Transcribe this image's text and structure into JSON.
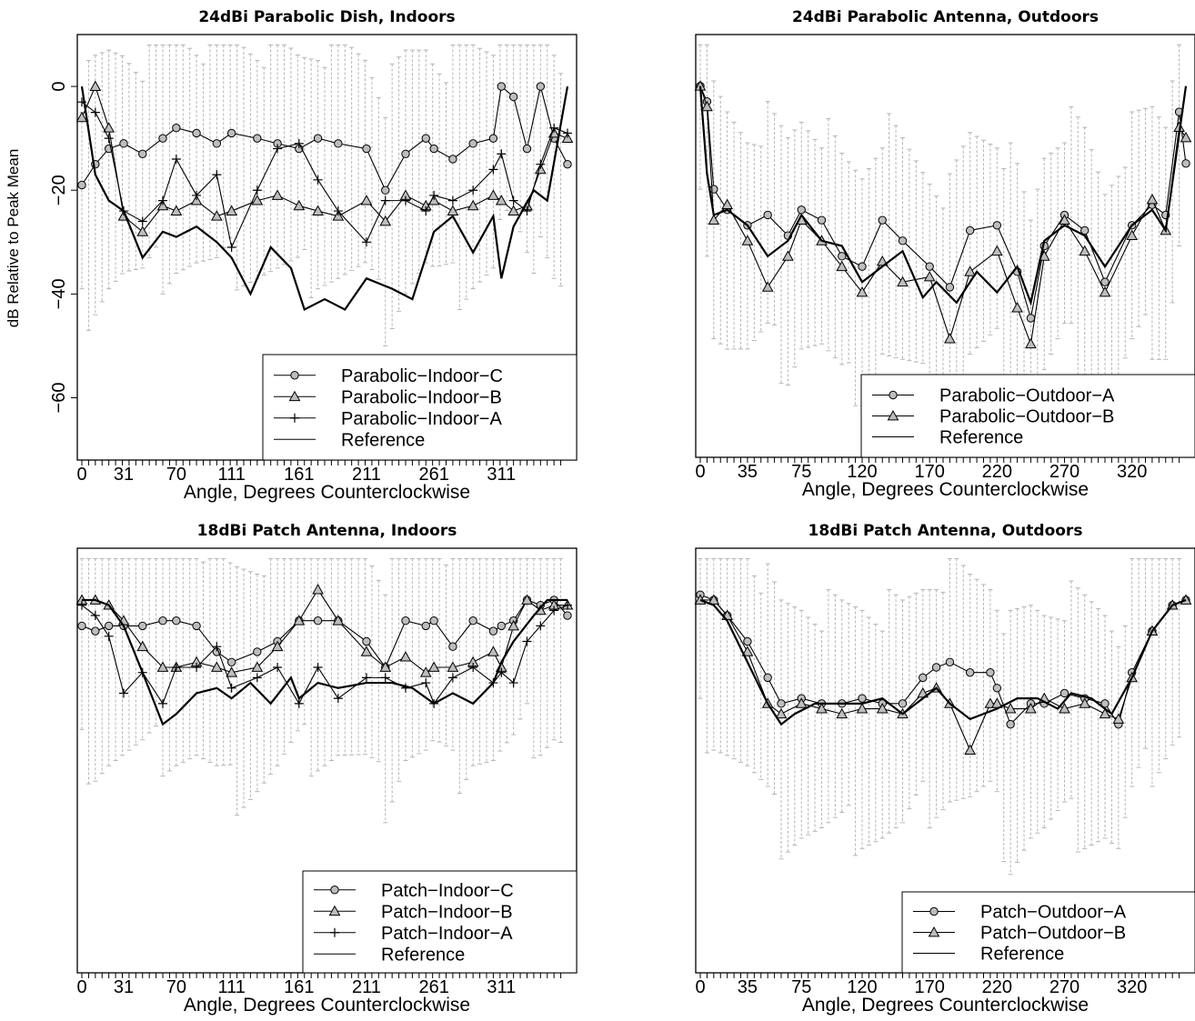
{
  "chart_data": [
    {
      "type": "line",
      "title": "24dBi Parabolic Dish, Indoors",
      "xlabel": "Angle, Degrees Counterclockwise",
      "ylabel": "dB Relative to Peak Mean",
      "xlim": [
        0,
        360
      ],
      "ylim": [
        -72,
        10
      ],
      "xticks": [
        0,
        31,
        70,
        111,
        161,
        211,
        261,
        311
      ],
      "yticks": [
        0,
        -20,
        -40,
        -60
      ],
      "legend_position": "bottom-right",
      "series": [
        {
          "name": "Parabolic−Indoor−C",
          "marker": "circle",
          "x": [
            0,
            10,
            20,
            31,
            45,
            60,
            70,
            85,
            100,
            111,
            130,
            145,
            161,
            175,
            190,
            211,
            225,
            240,
            255,
            261,
            275,
            290,
            305,
            311,
            320,
            330,
            340,
            350,
            360
          ],
          "y": [
            -19,
            -15,
            -12,
            -11,
            -13,
            -10,
            -8,
            -9,
            -11,
            -9,
            -10,
            -11,
            -12,
            -10,
            -11,
            -12,
            -20,
            -13,
            -10,
            -12,
            -14,
            -11,
            -10,
            0,
            -2,
            -12,
            0,
            -10,
            -15
          ]
        },
        {
          "name": "Parabolic−Indoor−B",
          "marker": "triangle",
          "x": [
            0,
            10,
            20,
            31,
            45,
            60,
            70,
            85,
            100,
            111,
            130,
            145,
            161,
            175,
            190,
            211,
            225,
            240,
            255,
            261,
            275,
            290,
            305,
            311,
            320,
            330,
            340,
            350,
            360
          ],
          "y": [
            -6,
            0,
            -8,
            -25,
            -28,
            -23,
            -24,
            -22,
            -25,
            -24,
            -22,
            -21,
            -23,
            -24,
            -25,
            -22,
            -26,
            -21,
            -23,
            -22,
            -24,
            -23,
            -21,
            -22,
            -24,
            -23,
            -16,
            -9,
            -10
          ]
        },
        {
          "name": "Parabolic−Indoor−A",
          "marker": "plus",
          "x": [
            0,
            10,
            20,
            31,
            45,
            60,
            70,
            85,
            100,
            111,
            130,
            145,
            161,
            175,
            190,
            211,
            225,
            240,
            255,
            261,
            275,
            290,
            305,
            311,
            320,
            330,
            340,
            350,
            360
          ],
          "y": [
            -3,
            -5,
            -10,
            -24,
            -26,
            -22,
            -14,
            -21,
            -17,
            -31,
            -20,
            -12,
            -11,
            -18,
            -24,
            -30,
            -22,
            -22,
            -24,
            -21,
            -22,
            -20,
            -16,
            -13,
            -22,
            -24,
            -15,
            -8,
            -9
          ]
        },
        {
          "name": "Reference",
          "marker": "none",
          "x": [
            0,
            10,
            20,
            31,
            45,
            60,
            70,
            85,
            100,
            111,
            125,
            140,
            155,
            165,
            180,
            195,
            211,
            230,
            245,
            261,
            275,
            290,
            305,
            311,
            320,
            335,
            345,
            360
          ],
          "y": [
            0,
            -17,
            -22,
            -24,
            -33,
            -28,
            -29,
            -27,
            -30,
            -33,
            -40,
            -31,
            -35,
            -43,
            -41,
            -43,
            -37,
            -39,
            -41,
            -28,
            -25,
            -32,
            -25,
            -37,
            -27,
            -20,
            -22,
            0
          ]
        }
      ]
    },
    {
      "type": "line",
      "title": "24dBi Parabolic Antenna, Outdoors",
      "xlabel": "Angle, Degrees Counterclockwise",
      "ylabel": "",
      "xlim": [
        0,
        360
      ],
      "ylim": [
        -72,
        10
      ],
      "xticks": [
        0,
        35,
        75,
        120,
        170,
        220,
        270,
        320
      ],
      "yticks": [],
      "legend_position": "bottom-right",
      "series": [
        {
          "name": "Parabolic−Outdoor−A",
          "marker": "circle",
          "x": [
            0,
            5,
            10,
            20,
            35,
            50,
            65,
            75,
            90,
            105,
            120,
            135,
            150,
            170,
            185,
            200,
            220,
            235,
            245,
            255,
            270,
            285,
            300,
            320,
            335,
            345,
            355,
            360
          ],
          "y": [
            0,
            -3,
            -20,
            -24,
            -27,
            -25,
            -29,
            -24,
            -26,
            -33,
            -35,
            -26,
            -30,
            -35,
            -39,
            -28,
            -27,
            -36,
            -45,
            -31,
            -25,
            -28,
            -38,
            -27,
            -23,
            -25,
            -5,
            -15
          ]
        },
        {
          "name": "Parabolic−Outdoor−B",
          "marker": "triangle",
          "x": [
            0,
            5,
            10,
            20,
            35,
            50,
            65,
            75,
            90,
            105,
            120,
            135,
            150,
            170,
            185,
            200,
            220,
            235,
            245,
            255,
            270,
            285,
            300,
            320,
            335,
            345,
            355,
            360
          ],
          "y": [
            0,
            -4,
            -26,
            -23,
            -30,
            -39,
            -33,
            -26,
            -30,
            -35,
            -40,
            -34,
            -38,
            -37,
            -49,
            -36,
            -32,
            -43,
            -50,
            -33,
            -26,
            -32,
            -40,
            -29,
            -22,
            -28,
            -8,
            -10
          ]
        },
        {
          "name": "Reference",
          "marker": "none",
          "x": [
            0,
            5,
            10,
            20,
            35,
            50,
            65,
            75,
            90,
            105,
            120,
            135,
            150,
            165,
            175,
            190,
            205,
            220,
            235,
            245,
            255,
            270,
            285,
            300,
            320,
            335,
            345,
            360
          ],
          "y": [
            0,
            -17,
            -25,
            -24,
            -27,
            -33,
            -30,
            -25,
            -30,
            -31,
            -38,
            -35,
            -32,
            -41,
            -38,
            -42,
            -36,
            -40,
            -35,
            -42,
            -30,
            -27,
            -29,
            -35,
            -27,
            -24,
            -28,
            0
          ]
        }
      ]
    },
    {
      "type": "line",
      "title": "18dBi Patch Antenna, Indoors",
      "xlabel": "Angle, Degrees Counterclockwise",
      "ylabel": "",
      "xlim": [
        0,
        360
      ],
      "ylim": [
        -72,
        10
      ],
      "xticks": [
        0,
        31,
        70,
        111,
        161,
        211,
        261,
        311
      ],
      "yticks": [],
      "legend_position": "bottom-right",
      "series": [
        {
          "name": "Patch−Indoor−C",
          "marker": "circle",
          "x": [
            0,
            10,
            20,
            31,
            45,
            60,
            70,
            85,
            100,
            111,
            130,
            145,
            161,
            175,
            190,
            211,
            225,
            240,
            255,
            261,
            275,
            290,
            305,
            311,
            320,
            330,
            340,
            350,
            360
          ],
          "y": [
            -5,
            -6,
            -5,
            -5,
            -5,
            -4,
            -4,
            -5,
            -10,
            -12,
            -10,
            -8,
            -4,
            -4,
            -4,
            -8,
            -13,
            -4,
            -5,
            -4,
            -9,
            -4,
            -6,
            -5,
            -4,
            0,
            -1,
            0,
            -3
          ]
        },
        {
          "name": "Patch−Indoor−B",
          "marker": "triangle",
          "x": [
            0,
            10,
            20,
            31,
            45,
            60,
            70,
            85,
            100,
            111,
            130,
            145,
            161,
            175,
            190,
            211,
            225,
            240,
            255,
            261,
            275,
            290,
            305,
            311,
            320,
            330,
            340,
            350,
            360
          ],
          "y": [
            0,
            0,
            -1,
            -4,
            -9,
            -13,
            -13,
            -12,
            -13,
            -14,
            -13,
            -9,
            -4,
            2,
            -4,
            -10,
            -13,
            -11,
            -14,
            -13,
            -13,
            -12,
            -10,
            -13,
            -5,
            0,
            -2,
            -1,
            -1
          ]
        },
        {
          "name": "Patch−Indoor−A",
          "marker": "plus",
          "x": [
            0,
            10,
            20,
            31,
            45,
            60,
            70,
            85,
            100,
            111,
            130,
            145,
            161,
            175,
            190,
            211,
            225,
            240,
            255,
            261,
            275,
            290,
            305,
            311,
            320,
            330,
            340,
            350,
            360
          ],
          "y": [
            -1,
            -3,
            -7,
            -18,
            -14,
            -20,
            -13,
            -13,
            -9,
            -17,
            -15,
            -13,
            -20,
            -13,
            -19,
            -15,
            -15,
            -17,
            -16,
            -20,
            -15,
            -13,
            -16,
            -14,
            -16,
            -8,
            -5,
            -2,
            -1
          ]
        },
        {
          "name": "Reference",
          "marker": "none",
          "x": [
            0,
            10,
            20,
            31,
            45,
            60,
            70,
            85,
            100,
            111,
            125,
            140,
            155,
            161,
            175,
            190,
            211,
            230,
            245,
            261,
            275,
            290,
            305,
            311,
            320,
            335,
            345,
            360
          ],
          "y": [
            0,
            0,
            -1,
            -5,
            -14,
            -24,
            -22,
            -18,
            -17,
            -19,
            -16,
            -20,
            -15,
            -19,
            -16,
            -17,
            -16,
            -16,
            -17,
            -20,
            -18,
            -20,
            -16,
            -12,
            -8,
            -3,
            0,
            0
          ]
        }
      ]
    },
    {
      "type": "line",
      "title": "18dBi Patch Antenna, Outdoors",
      "xlabel": "Angle, Degrees Counterclockwise",
      "ylabel": "",
      "xlim": [
        0,
        360
      ],
      "ylim": [
        -72,
        10
      ],
      "xticks": [
        0,
        35,
        75,
        120,
        170,
        220,
        270,
        320
      ],
      "yticks": [],
      "legend_position": "bottom-right",
      "series": [
        {
          "name": "Patch−Outdoor−A",
          "marker": "circle",
          "x": [
            0,
            10,
            20,
            35,
            50,
            60,
            75,
            90,
            105,
            120,
            135,
            150,
            165,
            175,
            185,
            200,
            215,
            220,
            230,
            245,
            255,
            270,
            285,
            300,
            310,
            320,
            335,
            350,
            360
          ],
          "y": [
            1,
            0,
            -3,
            -8,
            -15,
            -20,
            -19,
            -20,
            -20,
            -19,
            -20,
            -20,
            -15,
            -13,
            -12,
            -14,
            -14,
            -17,
            -24,
            -20,
            -20,
            -18,
            -19,
            -20,
            -24,
            -14,
            -6,
            -1,
            0
          ]
        },
        {
          "name": "Patch−Outdoor−B",
          "marker": "triangle",
          "x": [
            0,
            10,
            20,
            35,
            50,
            60,
            75,
            90,
            105,
            120,
            135,
            150,
            165,
            175,
            185,
            200,
            215,
            220,
            230,
            245,
            255,
            270,
            285,
            300,
            310,
            320,
            335,
            350,
            360
          ],
          "y": [
            0,
            0,
            -3,
            -10,
            -20,
            -22,
            -20,
            -21,
            -22,
            -21,
            -21,
            -22,
            -18,
            -17,
            -20,
            -29,
            -20,
            -20,
            -21,
            -21,
            -19,
            -21,
            -20,
            -22,
            -23,
            -15,
            -6,
            -1,
            0
          ]
        },
        {
          "name": "Reference",
          "marker": "none",
          "x": [
            0,
            10,
            20,
            35,
            50,
            60,
            70,
            85,
            100,
            120,
            135,
            150,
            160,
            175,
            185,
            200,
            220,
            235,
            250,
            265,
            275,
            290,
            305,
            320,
            335,
            350,
            360
          ],
          "y": [
            0,
            -1,
            -4,
            -12,
            -20,
            -24,
            -22,
            -20,
            -20,
            -20,
            -19,
            -22,
            -20,
            -17,
            -20,
            -23,
            -21,
            -19,
            -19,
            -21,
            -18,
            -19,
            -22,
            -15,
            -6,
            -1,
            0
          ]
        }
      ]
    }
  ]
}
